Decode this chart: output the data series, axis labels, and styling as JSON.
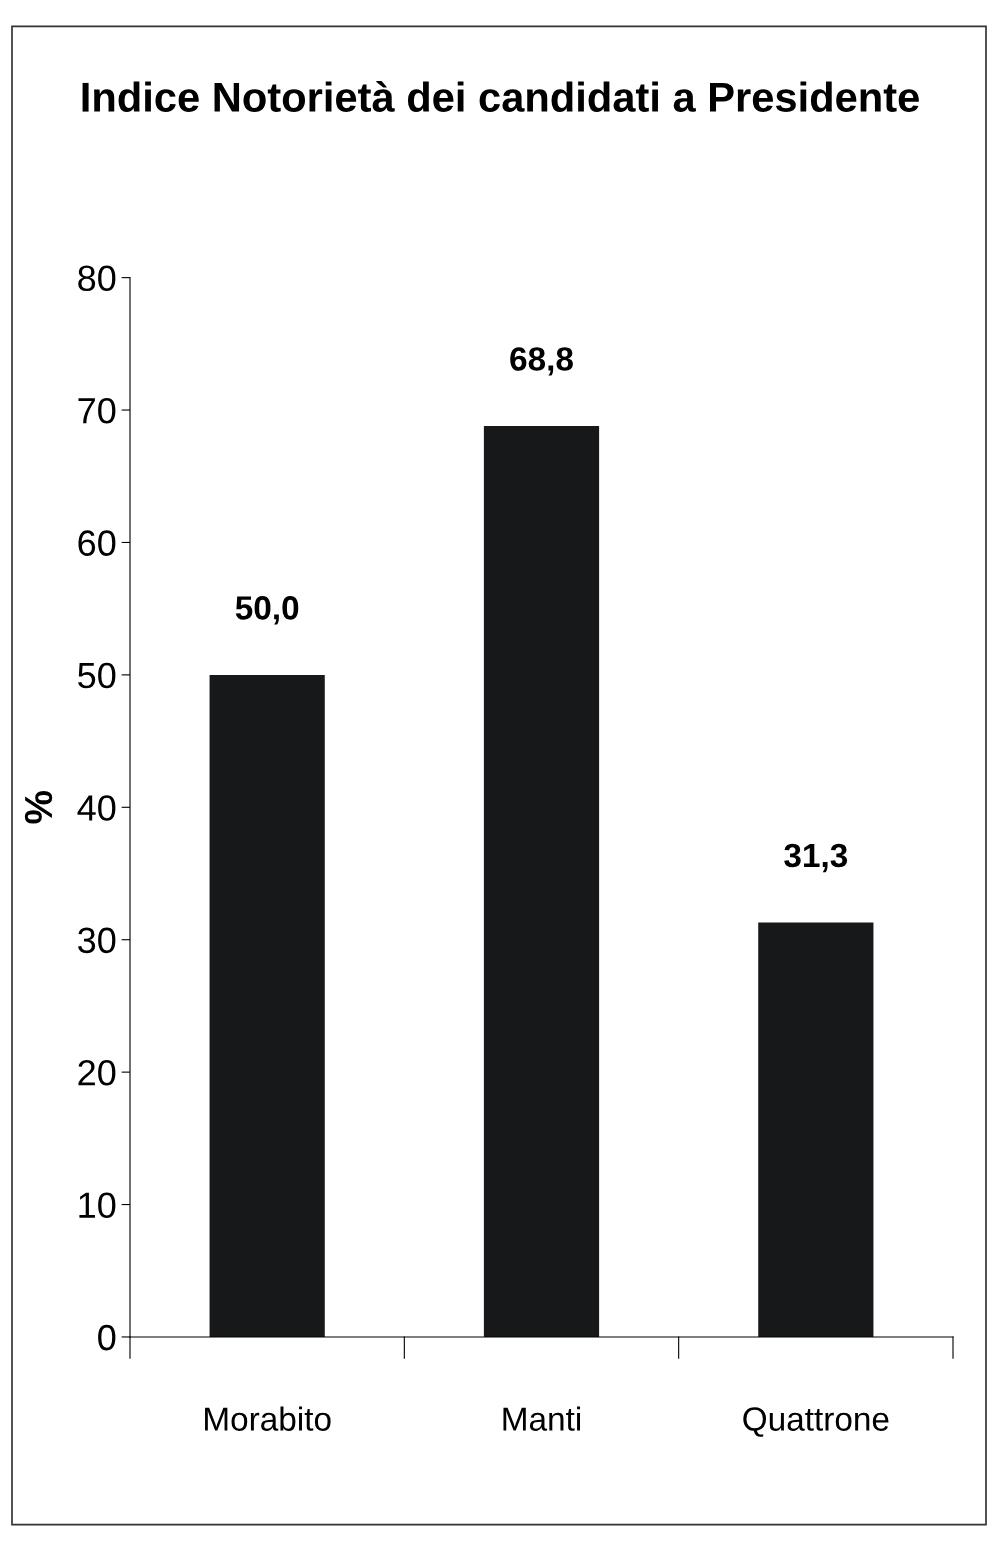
{
  "chart_data": {
    "type": "bar",
    "title": "Indice Notorietà dei candidati a Presidente",
    "ylabel": "%",
    "categories": [
      "Morabito",
      "Manti",
      "Quattrone"
    ],
    "values": [
      50.0,
      68.8,
      31.3
    ],
    "value_labels": [
      "50,0",
      "68,8",
      "31,3"
    ],
    "color": "#161819",
    "ylim": [
      0,
      80
    ],
    "yticks": [
      0,
      10,
      20,
      30,
      40,
      50,
      60,
      70,
      80
    ],
    "grid": false,
    "legend": false
  }
}
